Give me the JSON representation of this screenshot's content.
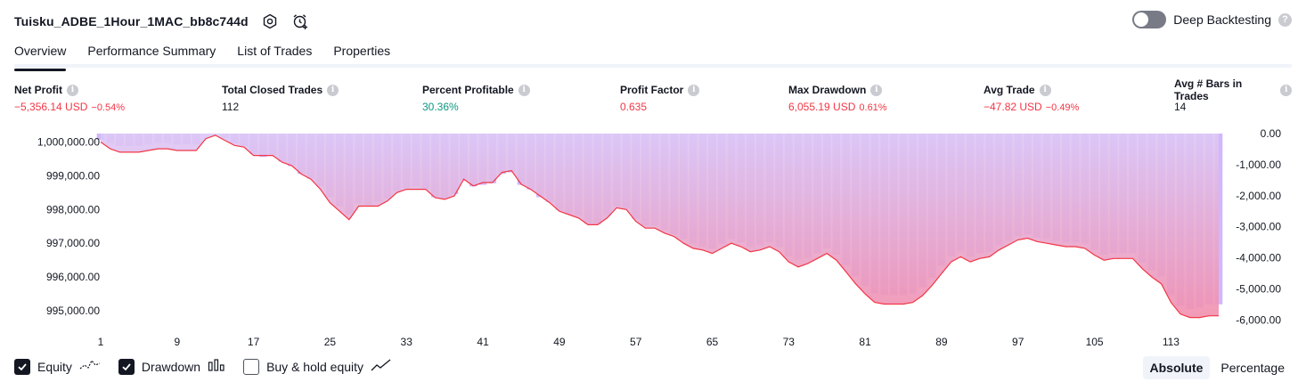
{
  "header": {
    "title": "Tuisku_ADBE_1Hour_1MAC_bb8c744d",
    "deep_backtesting_label": "Deep Backtesting",
    "help_glyph": "?"
  },
  "tabs": [
    {
      "label": "Overview",
      "active": true
    },
    {
      "label": "Performance Summary",
      "active": false
    },
    {
      "label": "List of Trades",
      "active": false
    },
    {
      "label": "Properties",
      "active": false
    }
  ],
  "metrics": [
    {
      "label": "Net Profit",
      "value": "−5,356.14 USD",
      "pct": "−0.54%",
      "color": "red"
    },
    {
      "label": "Total Closed Trades",
      "value": "112",
      "pct": "",
      "color": "dark"
    },
    {
      "label": "Percent Profitable",
      "value": "30.36%",
      "pct": "",
      "color": "green"
    },
    {
      "label": "Profit Factor",
      "value": "0.635",
      "pct": "",
      "color": "red"
    },
    {
      "label": "Max Drawdown",
      "value": "6,055.19 USD",
      "pct": "0.61%",
      "color": "red"
    },
    {
      "label": "Avg Trade",
      "value": "−47.82 USD",
      "pct": "−0.49%",
      "color": "red"
    },
    {
      "label": "Avg # Bars in Trades",
      "value": "14",
      "pct": "",
      "color": "dark"
    }
  ],
  "info_glyph": "i",
  "chart_data": {
    "type": "line",
    "x_ticks": [
      "1",
      "9",
      "17",
      "25",
      "33",
      "41",
      "49",
      "57",
      "65",
      "73",
      "81",
      "89",
      "97",
      "105",
      "113"
    ],
    "left_axis_ticks": [
      "1,000,000.00",
      "999,000.00",
      "998,000.00",
      "997,000.00",
      "996,000.00",
      "995,000.00"
    ],
    "right_axis_ticks": [
      "0.00",
      "-1,000.00",
      "-2,000.00",
      "-3,000.00",
      "-4,000.00",
      "-5,000.00",
      "-6,000.00"
    ],
    "equity_ylim": [
      994500,
      1000250
    ],
    "drawdown_ylim": [
      -6250,
      0
    ],
    "series": [
      {
        "name": "Equity",
        "color": "#f23645",
        "values": [
          1000000,
          999800,
          999700,
          999700,
          999700,
          999750,
          999800,
          999800,
          999750,
          999750,
          999750,
          1000100,
          1000200,
          1000050,
          999900,
          999850,
          999600,
          999600,
          999600,
          999400,
          999300,
          999050,
          998900,
          998600,
          998200,
          997950,
          997700,
          998100,
          998100,
          998100,
          998250,
          998500,
          998600,
          998600,
          998600,
          998350,
          998300,
          998400,
          998900,
          998700,
          998800,
          998800,
          999100,
          999150,
          998750,
          998600,
          998400,
          998200,
          997950,
          997850,
          997750,
          997550,
          997550,
          997750,
          998050,
          998000,
          997650,
          997450,
          997450,
          997300,
          997200,
          997000,
          996850,
          996800,
          996700,
          996850,
          997000,
          996900,
          996750,
          996800,
          996900,
          996750,
          996450,
          996300,
          996400,
          996550,
          996700,
          996500,
          996150,
          995800,
          995500,
          995250,
          995200,
          995200,
          995200,
          995250,
          995450,
          995750,
          996100,
          996450,
          996600,
          996450,
          996550,
          996600,
          996800,
          996950,
          997100,
          997150,
          997050,
          997000,
          996950,
          996900,
          996900,
          996850,
          996650,
          996500,
          996550,
          996550,
          996550,
          996250,
          996000,
          995800,
          995250,
          994900,
          994800,
          994800,
          994850,
          994850
        ]
      },
      {
        "name": "Drawdown",
        "color": "#d1b7fb",
        "values": [
          -200,
          -300,
          -400,
          -400,
          -400,
          -350,
          -300,
          -300,
          -350,
          -350,
          -350,
          0,
          0,
          -150,
          -300,
          -400,
          -650,
          -750,
          -700,
          -900,
          -1050,
          -1300,
          -1450,
          -1700,
          -2050,
          -2350,
          -2600,
          -2250,
          -2300,
          -2200,
          -2100,
          -1850,
          -1750,
          -1700,
          -1800,
          -2050,
          -2100,
          -1950,
          -1500,
          -1700,
          -1650,
          -1600,
          -1300,
          -1250,
          -1650,
          -1800,
          -2050,
          -2200,
          -2450,
          -2600,
          -2650,
          -2900,
          -2900,
          -2650,
          -2350,
          -2400,
          -2750,
          -2950,
          -2950,
          -3100,
          -3250,
          -3400,
          -3550,
          -3650,
          -3700,
          -3550,
          -3400,
          -3500,
          -3650,
          -3600,
          -3500,
          -3650,
          -3950,
          -4050,
          -4000,
          -3850,
          -3700,
          -3900,
          -4250,
          -4600,
          -4900,
          -5150,
          -5200,
          -5200,
          -5200,
          -5150,
          -4950,
          -4650,
          -4250,
          -3950,
          -3800,
          -3950,
          -3850,
          -3800,
          -3600,
          -3450,
          -3300,
          -3250,
          -3350,
          -3400,
          -3450,
          -3500,
          -3500,
          -3550,
          -3750,
          -3900,
          -3850,
          -3850,
          -3850,
          -4150,
          -4400,
          -4600,
          -5200,
          -5550,
          -5650,
          -5600,
          -5500,
          -5500
        ]
      }
    ]
  },
  "legend": {
    "equity_label": "Equity",
    "drawdown_label": "Drawdown",
    "buyhold_label": "Buy & hold equity"
  },
  "mode": {
    "absolute_label": "Absolute",
    "percentage_label": "Percentage"
  }
}
